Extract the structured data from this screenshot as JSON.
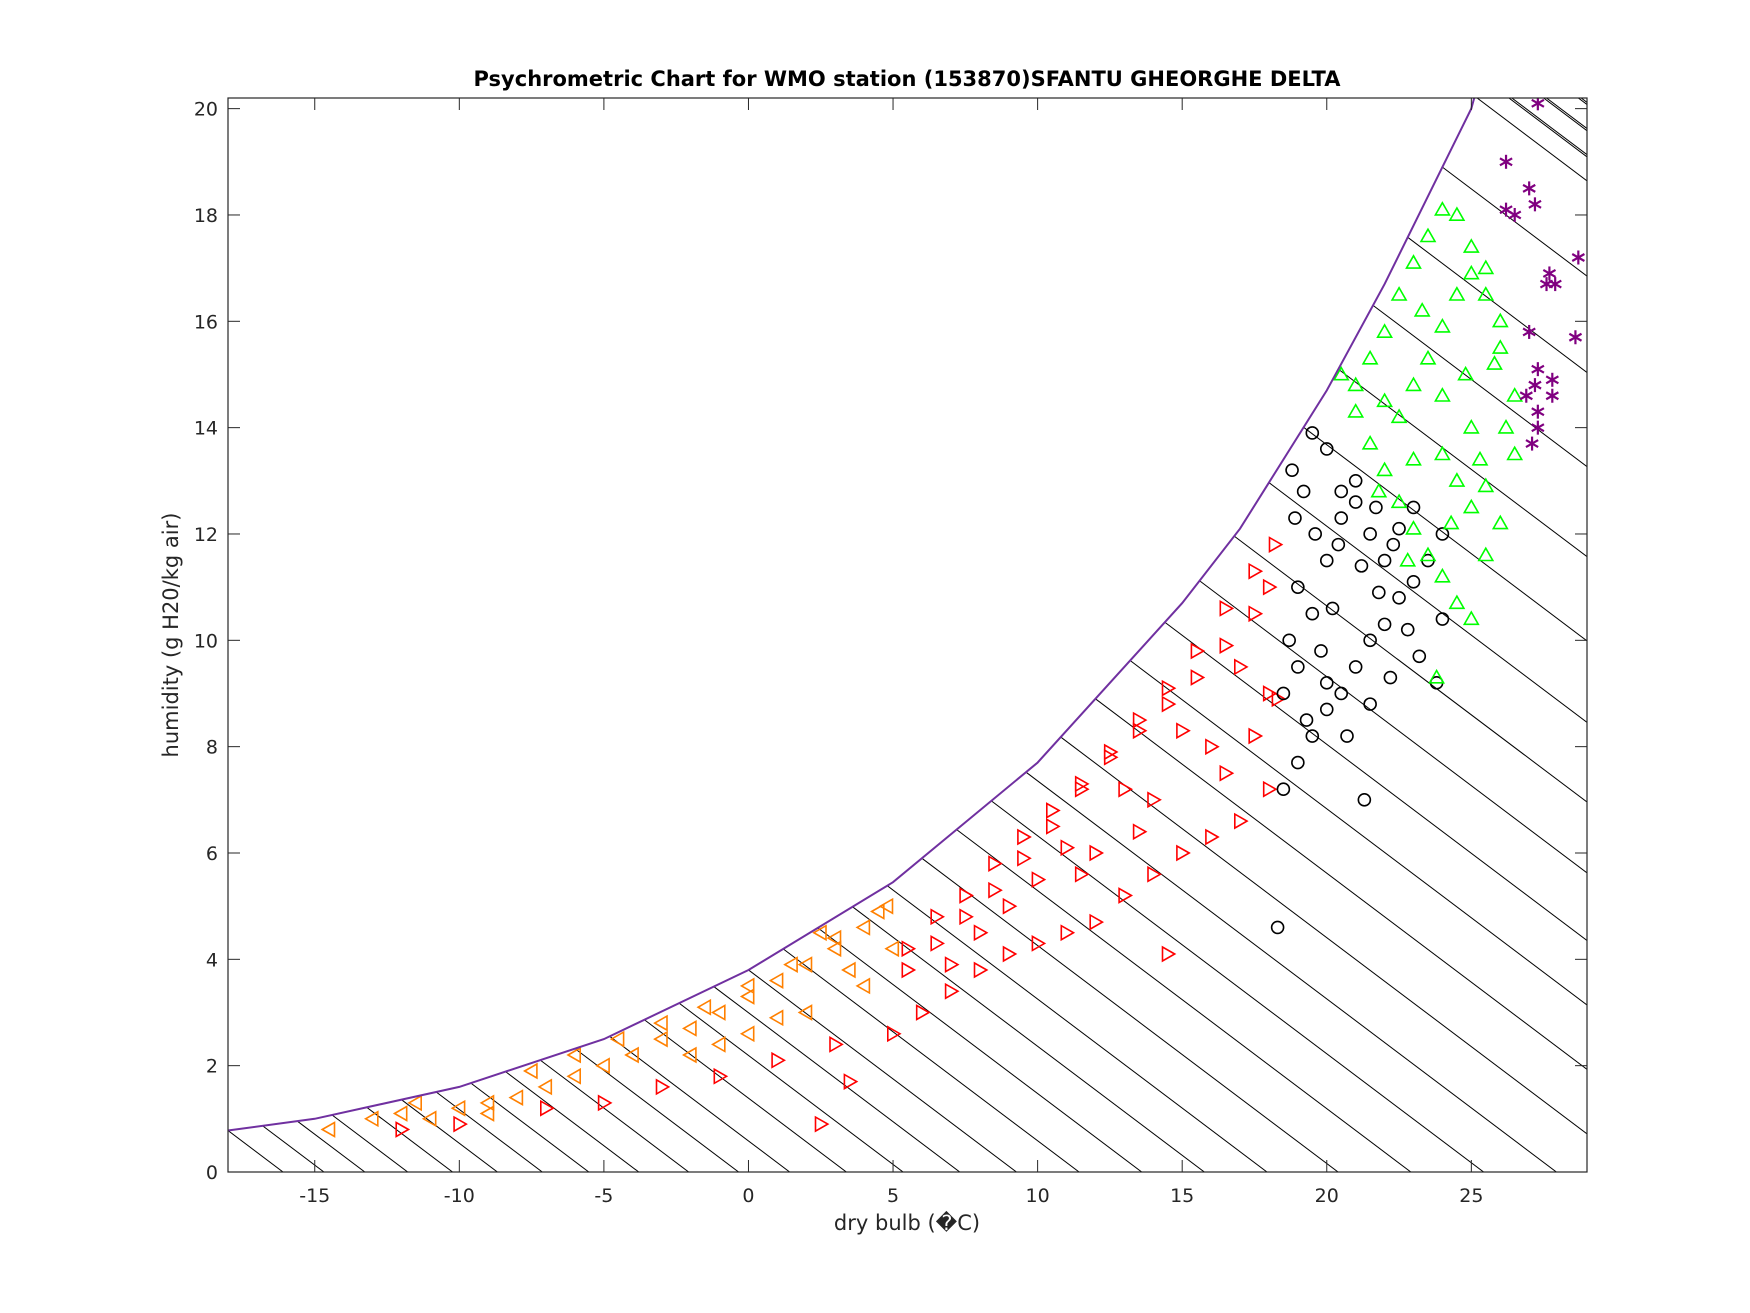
{
  "chart_data": {
    "type": "scatter",
    "title": "Psychrometric Chart for WMO station (153870)SFANTU GHEORGHE DELTA",
    "xlabel": "dry bulb (�C)",
    "ylabel": "humidity (g H20/kg air)",
    "xlim": [
      -18,
      29
    ],
    "ylim": [
      0,
      20.2
    ],
    "xticks": [
      -15,
      -10,
      -5,
      0,
      5,
      10,
      15,
      20,
      25
    ],
    "yticks": [
      0,
      2,
      4,
      6,
      8,
      10,
      12,
      14,
      16,
      18,
      20
    ],
    "grid": false,
    "saturation_curve": {
      "color": "#7030a0",
      "x": [
        -18,
        -15,
        -10,
        -5,
        0,
        5,
        10,
        15,
        17,
        20,
        22,
        24,
        25,
        25.1
      ],
      "y": [
        0.78,
        1.0,
        1.6,
        2.5,
        3.8,
        5.45,
        7.7,
        10.7,
        12.1,
        14.7,
        16.7,
        18.9,
        20.0,
        20.2
      ]
    },
    "series": [
      {
        "marker": "triangle-left",
        "color": "#ff8000",
        "points": [
          [
            -14.5,
            0.8
          ],
          [
            -13,
            1.0
          ],
          [
            -12,
            1.1
          ],
          [
            -11,
            1.0
          ],
          [
            -10,
            1.2
          ],
          [
            -9,
            1.3
          ],
          [
            -8,
            1.4
          ],
          [
            -7,
            1.6
          ],
          [
            -6,
            1.8
          ],
          [
            -5,
            2.0
          ],
          [
            -4,
            2.2
          ],
          [
            -3,
            2.5
          ],
          [
            -2,
            2.7
          ],
          [
            -1,
            3.0
          ],
          [
            0,
            3.3
          ],
          [
            1,
            3.6
          ],
          [
            2,
            3.9
          ],
          [
            3,
            4.2
          ],
          [
            4,
            4.6
          ],
          [
            4.8,
            5.0
          ],
          [
            -7.5,
            1.9
          ],
          [
            -6,
            2.2
          ],
          [
            -4.5,
            2.5
          ],
          [
            -3,
            2.8
          ],
          [
            -1.5,
            3.1
          ],
          [
            0,
            3.5
          ],
          [
            1.5,
            3.9
          ],
          [
            3,
            4.4
          ],
          [
            4.5,
            4.9
          ],
          [
            -2,
            2.2
          ],
          [
            0,
            2.6
          ],
          [
            2,
            3.0
          ],
          [
            4,
            3.5
          ],
          [
            -9,
            1.1
          ],
          [
            -11.5,
            1.3
          ],
          [
            1,
            2.9
          ],
          [
            3.5,
            3.8
          ],
          [
            5,
            4.2
          ],
          [
            -1,
            2.4
          ],
          [
            2.5,
            4.5
          ]
        ]
      },
      {
        "marker": "triangle-right",
        "color": "#ff0000",
        "points": [
          [
            -12,
            0.8
          ],
          [
            -10,
            0.9
          ],
          [
            -7,
            1.2
          ],
          [
            -5,
            1.3
          ],
          [
            -3,
            1.6
          ],
          [
            -1,
            1.8
          ],
          [
            1,
            2.1
          ],
          [
            3,
            2.4
          ],
          [
            2.5,
            0.9
          ],
          [
            3.5,
            1.7
          ],
          [
            5,
            2.6
          ],
          [
            6,
            3.0
          ],
          [
            7,
            3.4
          ],
          [
            8,
            3.8
          ],
          [
            9,
            4.1
          ],
          [
            10,
            4.3
          ],
          [
            11,
            4.5
          ],
          [
            12,
            4.7
          ],
          [
            14.5,
            4.1
          ],
          [
            13,
            5.2
          ],
          [
            14,
            5.6
          ],
          [
            15,
            6.0
          ],
          [
            16,
            6.3
          ],
          [
            17,
            6.6
          ],
          [
            18,
            7.2
          ],
          [
            5.5,
            4.2
          ],
          [
            6.5,
            4.8
          ],
          [
            7.5,
            5.2
          ],
          [
            8.5,
            5.8
          ],
          [
            9.5,
            6.3
          ],
          [
            10.5,
            6.8
          ],
          [
            11.5,
            7.3
          ],
          [
            12.5,
            7.8
          ],
          [
            13.5,
            8.3
          ],
          [
            14.5,
            8.8
          ],
          [
            15.5,
            9.3
          ],
          [
            16.5,
            9.9
          ],
          [
            17.5,
            10.5
          ],
          [
            18,
            11.0
          ],
          [
            18.2,
            11.8
          ],
          [
            17.5,
            11.3
          ],
          [
            16.5,
            10.6
          ],
          [
            15.5,
            9.8
          ],
          [
            14.5,
            9.1
          ],
          [
            13.5,
            8.5
          ],
          [
            12.5,
            7.9
          ],
          [
            11.5,
            7.2
          ],
          [
            10.5,
            6.5
          ],
          [
            9.5,
            5.9
          ],
          [
            8.5,
            5.3
          ],
          [
            7.5,
            4.8
          ],
          [
            6.5,
            4.3
          ],
          [
            5.5,
            3.8
          ],
          [
            7,
            3.9
          ],
          [
            9,
            5.0
          ],
          [
            11,
            6.1
          ],
          [
            13,
            7.2
          ],
          [
            15,
            8.3
          ],
          [
            17,
            9.5
          ],
          [
            12,
            6.0
          ],
          [
            14,
            7.0
          ],
          [
            16,
            8.0
          ],
          [
            18,
            9.0
          ],
          [
            10,
            5.5
          ],
          [
            16.5,
            7.5
          ],
          [
            17.5,
            8.2
          ],
          [
            18.3,
            8.9
          ],
          [
            8,
            4.5
          ],
          [
            11.5,
            5.6
          ],
          [
            13.5,
            6.4
          ]
        ]
      },
      {
        "marker": "circle",
        "color": "#000000",
        "points": [
          [
            18.3,
            4.6
          ],
          [
            18.5,
            7.2
          ],
          [
            19,
            7.7
          ],
          [
            19.5,
            8.2
          ],
          [
            20,
            8.7
          ],
          [
            20.5,
            9.0
          ],
          [
            21,
            9.5
          ],
          [
            21.5,
            10.0
          ],
          [
            22,
            10.3
          ],
          [
            22.5,
            10.8
          ],
          [
            23,
            11.1
          ],
          [
            23.5,
            11.5
          ],
          [
            24,
            12.0
          ],
          [
            21.3,
            7.0
          ],
          [
            19,
            9.5
          ],
          [
            19.5,
            10.5
          ],
          [
            20,
            11.5
          ],
          [
            20.5,
            12.3
          ],
          [
            21,
            13.0
          ],
          [
            19.2,
            12.8
          ],
          [
            18.8,
            13.2
          ],
          [
            19.5,
            13.9
          ],
          [
            20,
            13.6
          ],
          [
            20.5,
            12.8
          ],
          [
            21.5,
            12.0
          ],
          [
            22,
            11.5
          ],
          [
            22.5,
            12.1
          ],
          [
            23,
            12.5
          ],
          [
            19,
            11.0
          ],
          [
            18.7,
            10.0
          ],
          [
            18.5,
            9.0
          ],
          [
            19.8,
            9.8
          ],
          [
            20.2,
            10.6
          ],
          [
            21.2,
            11.4
          ],
          [
            21.8,
            10.9
          ],
          [
            22.8,
            10.2
          ],
          [
            23.2,
            9.7
          ],
          [
            23.8,
            9.2
          ],
          [
            24,
            10.4
          ],
          [
            20.7,
            8.2
          ],
          [
            21.5,
            8.8
          ],
          [
            22.2,
            9.3
          ],
          [
            18.9,
            12.3
          ],
          [
            19.6,
            12.0
          ],
          [
            20.4,
            11.8
          ],
          [
            21.0,
            12.6
          ],
          [
            21.7,
            12.5
          ],
          [
            22.3,
            11.8
          ],
          [
            19.3,
            8.5
          ],
          [
            20.0,
            9.2
          ]
        ]
      },
      {
        "marker": "triangle-up",
        "color": "#00ff00",
        "points": [
          [
            20.5,
            15.0
          ],
          [
            21,
            14.3
          ],
          [
            21.5,
            13.7
          ],
          [
            22,
            13.2
          ],
          [
            22.5,
            12.6
          ],
          [
            23,
            12.1
          ],
          [
            23.5,
            11.6
          ],
          [
            24,
            11.2
          ],
          [
            24.5,
            10.7
          ],
          [
            25,
            10.4
          ],
          [
            23.8,
            9.3
          ],
          [
            25.5,
            11.6
          ],
          [
            26,
            12.2
          ],
          [
            26.5,
            13.5
          ],
          [
            26.5,
            14.6
          ],
          [
            26,
            15.5
          ],
          [
            25.5,
            16.5
          ],
          [
            25,
            17.4
          ],
          [
            24.5,
            18.0
          ],
          [
            24,
            18.1
          ],
          [
            23.5,
            17.6
          ],
          [
            23,
            17.1
          ],
          [
            22.5,
            16.5
          ],
          [
            22,
            15.8
          ],
          [
            21.5,
            15.3
          ],
          [
            21,
            14.8
          ],
          [
            22.5,
            14.2
          ],
          [
            23,
            14.8
          ],
          [
            23.5,
            15.3
          ],
          [
            24,
            15.9
          ],
          [
            24.5,
            16.5
          ],
          [
            25,
            16.9
          ],
          [
            25.5,
            17.0
          ],
          [
            24,
            13.5
          ],
          [
            24.5,
            13.0
          ],
          [
            25,
            12.5
          ],
          [
            25.5,
            12.9
          ],
          [
            23,
            13.4
          ],
          [
            22,
            14.5
          ],
          [
            24,
            14.6
          ],
          [
            25,
            14.0
          ],
          [
            25.8,
            15.2
          ],
          [
            26,
            16.0
          ],
          [
            21.8,
            12.8
          ],
          [
            22.8,
            11.5
          ],
          [
            24.3,
            12.2
          ],
          [
            23.3,
            16.2
          ],
          [
            24.8,
            15.0
          ],
          [
            26.2,
            14.0
          ],
          [
            25.3,
            13.4
          ]
        ]
      },
      {
        "marker": "asterisk",
        "color": "#800080",
        "points": [
          [
            27.3,
            20.1
          ],
          [
            26.2,
            19.0
          ],
          [
            27,
            18.5
          ],
          [
            27.2,
            18.2
          ],
          [
            26.5,
            18.0
          ],
          [
            26.2,
            18.1
          ],
          [
            27.7,
            16.9
          ],
          [
            27.6,
            16.7
          ],
          [
            27.9,
            16.7
          ],
          [
            28.7,
            17.2
          ],
          [
            28.6,
            15.7
          ],
          [
            27,
            15.8
          ],
          [
            27.3,
            15.1
          ],
          [
            27.8,
            14.9
          ],
          [
            26.9,
            14.6
          ],
          [
            27.2,
            14.8
          ],
          [
            27.8,
            14.6
          ],
          [
            27.3,
            14.3
          ],
          [
            27.3,
            14.0
          ],
          [
            27.1,
            13.7
          ]
        ]
      }
    ]
  }
}
